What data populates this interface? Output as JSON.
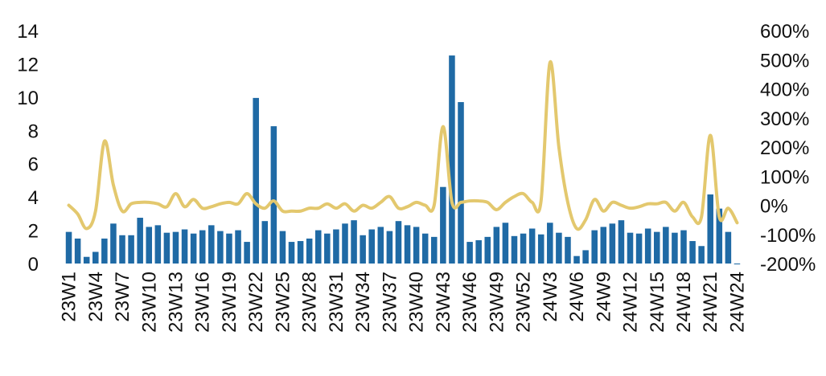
{
  "chart_data": {
    "type": "bar",
    "title": "",
    "x": [
      "23W1",
      "23W2",
      "23W3",
      "23W4",
      "23W5",
      "23W6",
      "23W7",
      "23W8",
      "23W9",
      "23W10",
      "23W11",
      "23W12",
      "23W13",
      "23W14",
      "23W15",
      "23W16",
      "23W17",
      "23W18",
      "23W19",
      "23W20",
      "23W21",
      "23W22",
      "23W23",
      "23W24",
      "23W25",
      "23W26",
      "23W27",
      "23W28",
      "23W29",
      "23W30",
      "23W31",
      "23W32",
      "23W33",
      "23W34",
      "23W35",
      "23W36",
      "23W37",
      "23W38",
      "23W39",
      "23W40",
      "23W41",
      "23W42",
      "23W43",
      "23W44",
      "23W45",
      "23W46",
      "23W47",
      "23W48",
      "23W49",
      "23W50",
      "23W51",
      "23W52",
      "24W1",
      "24W2",
      "24W3",
      "24W4",
      "24W5",
      "24W6",
      "24W7",
      "24W8",
      "24W9",
      "24W10",
      "24W11",
      "24W12",
      "24W13",
      "24W14",
      "24W15",
      "24W16",
      "24W17",
      "24W18",
      "24W19",
      "24W20",
      "24W21",
      "24W22",
      "24W23",
      "24W24"
    ],
    "x_tick_labels": [
      "23W1",
      "23W4",
      "23W7",
      "23W10",
      "23W13",
      "23W16",
      "23W19",
      "23W22",
      "23W25",
      "23W28",
      "23W31",
      "23W34",
      "23W37",
      "23W40",
      "23W43",
      "23W46",
      "23W49",
      "23W52",
      "24W3",
      "24W6",
      "24W9",
      "24W12",
      "24W15",
      "24W18",
      "24W21",
      "24W24"
    ],
    "series": [
      {
        "type": "bar",
        "axis": "left",
        "color": "#1f6aa5",
        "values": [
          1.9,
          1.5,
          0.4,
          0.7,
          1.5,
          2.4,
          1.7,
          1.7,
          2.75,
          2.2,
          2.3,
          1.85,
          1.9,
          2.05,
          1.8,
          2.0,
          2.3,
          1.95,
          1.8,
          2.0,
          1.3,
          9.95,
          2.55,
          8.25,
          1.95,
          1.3,
          1.35,
          1.5,
          2.0,
          1.8,
          2.05,
          2.4,
          2.6,
          1.7,
          2.05,
          2.2,
          1.95,
          2.55,
          2.3,
          2.2,
          1.8,
          1.6,
          4.6,
          12.5,
          9.7,
          1.3,
          1.4,
          1.6,
          2.2,
          2.45,
          1.65,
          1.8,
          2.1,
          1.75,
          2.45,
          1.85,
          1.6,
          0.45,
          0.8,
          2.0,
          2.2,
          2.4,
          2.6,
          1.85,
          1.8,
          2.1,
          1.9,
          2.2,
          1.85,
          2.0,
          1.35,
          1.05,
          4.15,
          3.3,
          1.9,
          -0.05
        ]
      },
      {
        "type": "line",
        "axis": "right",
        "color": "#e3c86e",
        "values": [
          0,
          -30,
          -80,
          -20,
          220,
          70,
          -20,
          5,
          10,
          10,
          5,
          -5,
          40,
          -5,
          20,
          -10,
          -5,
          5,
          10,
          5,
          40,
          5,
          -10,
          15,
          -20,
          -20,
          -20,
          -10,
          -10,
          5,
          -10,
          5,
          -20,
          0,
          -10,
          10,
          30,
          -10,
          -5,
          10,
          0,
          0,
          270,
          10,
          10,
          15,
          15,
          10,
          -15,
          10,
          30,
          40,
          10,
          15,
          490,
          200,
          10,
          -80,
          -50,
          20,
          -20,
          10,
          0,
          -10,
          -5,
          5,
          5,
          10,
          -20,
          10,
          -40,
          -40,
          240,
          -40,
          -10,
          -60
        ]
      }
    ],
    "y_left": {
      "ylim": [
        0,
        14
      ],
      "ticks": [
        0,
        2,
        4,
        6,
        8,
        10,
        12,
        14
      ]
    },
    "y_right": {
      "ylim": [
        -200,
        600
      ],
      "ticks": [
        -200,
        -100,
        0,
        100,
        200,
        300,
        400,
        500,
        600
      ],
      "tick_labels": [
        "-200%",
        "-100%",
        "0%",
        "100%",
        "200%",
        "300%",
        "400%",
        "500%",
        "600%"
      ]
    },
    "xlabel": "",
    "ylabel": "",
    "grid": false,
    "legend": "none"
  }
}
